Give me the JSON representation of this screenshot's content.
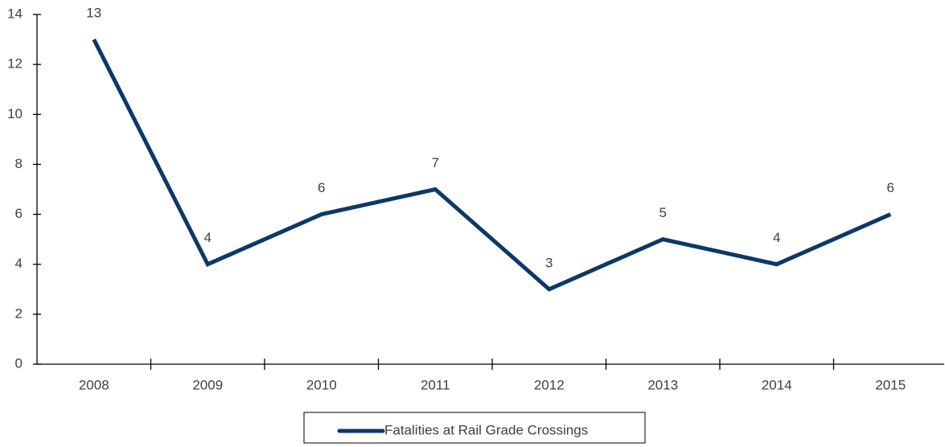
{
  "chart_data": {
    "type": "line",
    "categories": [
      "2008",
      "2009",
      "2010",
      "2011",
      "2012",
      "2013",
      "2014",
      "2015"
    ],
    "series": [
      {
        "name": "Fatalities at Rail Grade Crossings",
        "color": "#0d3868",
        "values": [
          13,
          4,
          6,
          7,
          3,
          5,
          4,
          6
        ]
      }
    ],
    "ylim": [
      0,
      14
    ],
    "yticks": [
      0,
      2,
      4,
      6,
      8,
      10,
      12,
      14
    ],
    "grid": false,
    "data_labels": true,
    "legend": "bottom"
  }
}
